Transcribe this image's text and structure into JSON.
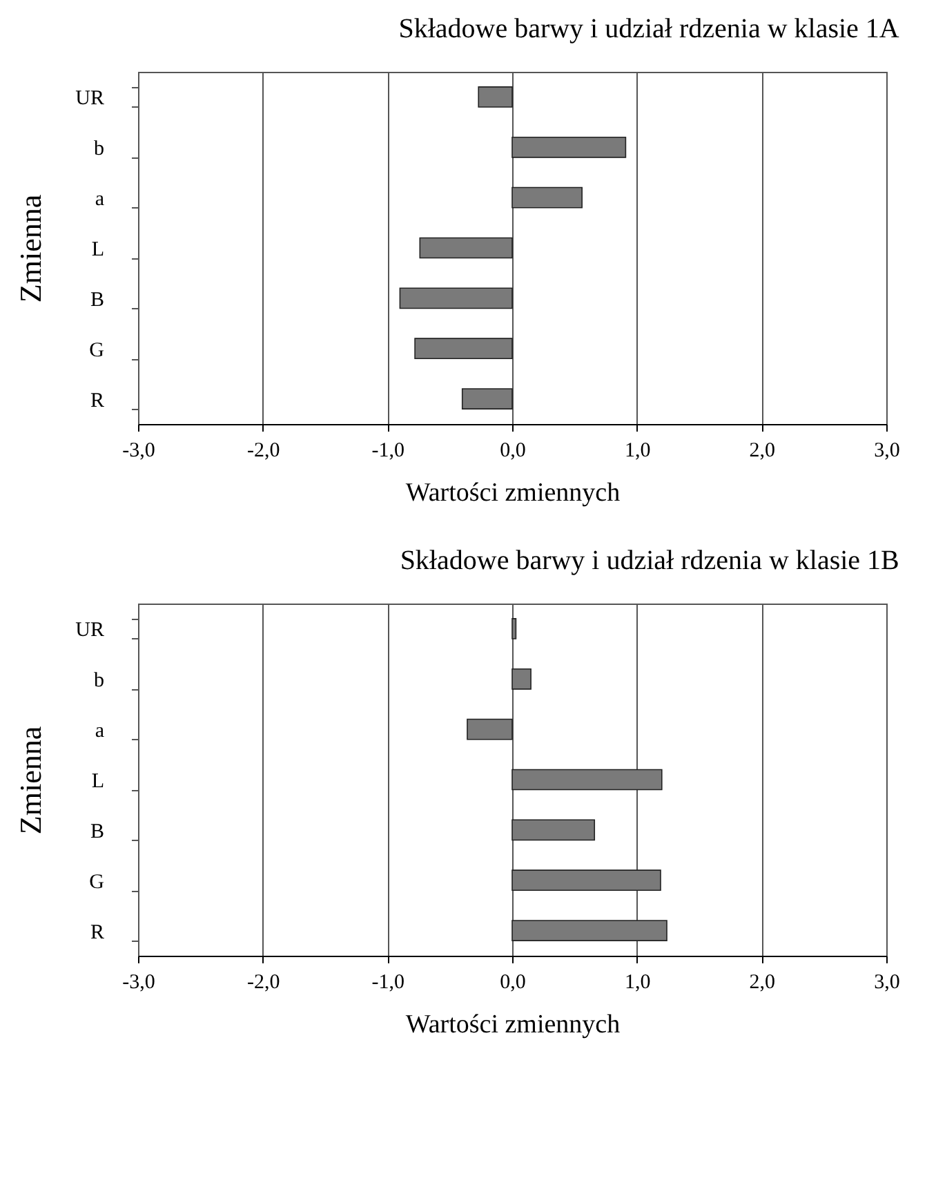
{
  "chart_data": [
    {
      "type": "bar",
      "orientation": "horizontal",
      "title": "Składowe barwy i udział rdzenia w klasie 1A",
      "xlabel": "Wartości zmiennych",
      "ylabel": "Zmienna",
      "categories": [
        "UR",
        "b",
        "a",
        "L",
        "B",
        "G",
        "R"
      ],
      "values": [
        -0.27,
        0.91,
        0.56,
        -0.74,
        -0.9,
        -0.78,
        -0.4
      ],
      "color": "#7a7a7a",
      "xlim": [
        -3,
        3
      ],
      "xticks": [
        {
          "value": -3,
          "label": "-3,0"
        },
        {
          "value": -2,
          "label": "-2,0"
        },
        {
          "value": -1,
          "label": "-1,0"
        },
        {
          "value": 0,
          "label": "0,0"
        },
        {
          "value": 1,
          "label": "1,0"
        },
        {
          "value": 2,
          "label": "2,0"
        },
        {
          "value": 3,
          "label": "3,0"
        }
      ],
      "grid": "x"
    },
    {
      "type": "bar",
      "orientation": "horizontal",
      "title": "Składowe barwy i udział rdzenia w klasie 1B",
      "xlabel": "Wartości zmiennych",
      "ylabel": "Zmienna",
      "categories": [
        "UR",
        "b",
        "a",
        "L",
        "B",
        "G",
        "R"
      ],
      "values": [
        0.03,
        0.15,
        -0.36,
        1.2,
        0.66,
        1.19,
        1.24
      ],
      "color": "#7a7a7a",
      "xlim": [
        -3,
        3
      ],
      "xticks": [
        {
          "value": -3,
          "label": "-3,0"
        },
        {
          "value": -2,
          "label": "-2,0"
        },
        {
          "value": -1,
          "label": "-1,0"
        },
        {
          "value": 0,
          "label": "0,0"
        },
        {
          "value": 1,
          "label": "1,0"
        },
        {
          "value": 2,
          "label": "2,0"
        },
        {
          "value": 3,
          "label": "3,0"
        }
      ],
      "grid": "x"
    }
  ]
}
